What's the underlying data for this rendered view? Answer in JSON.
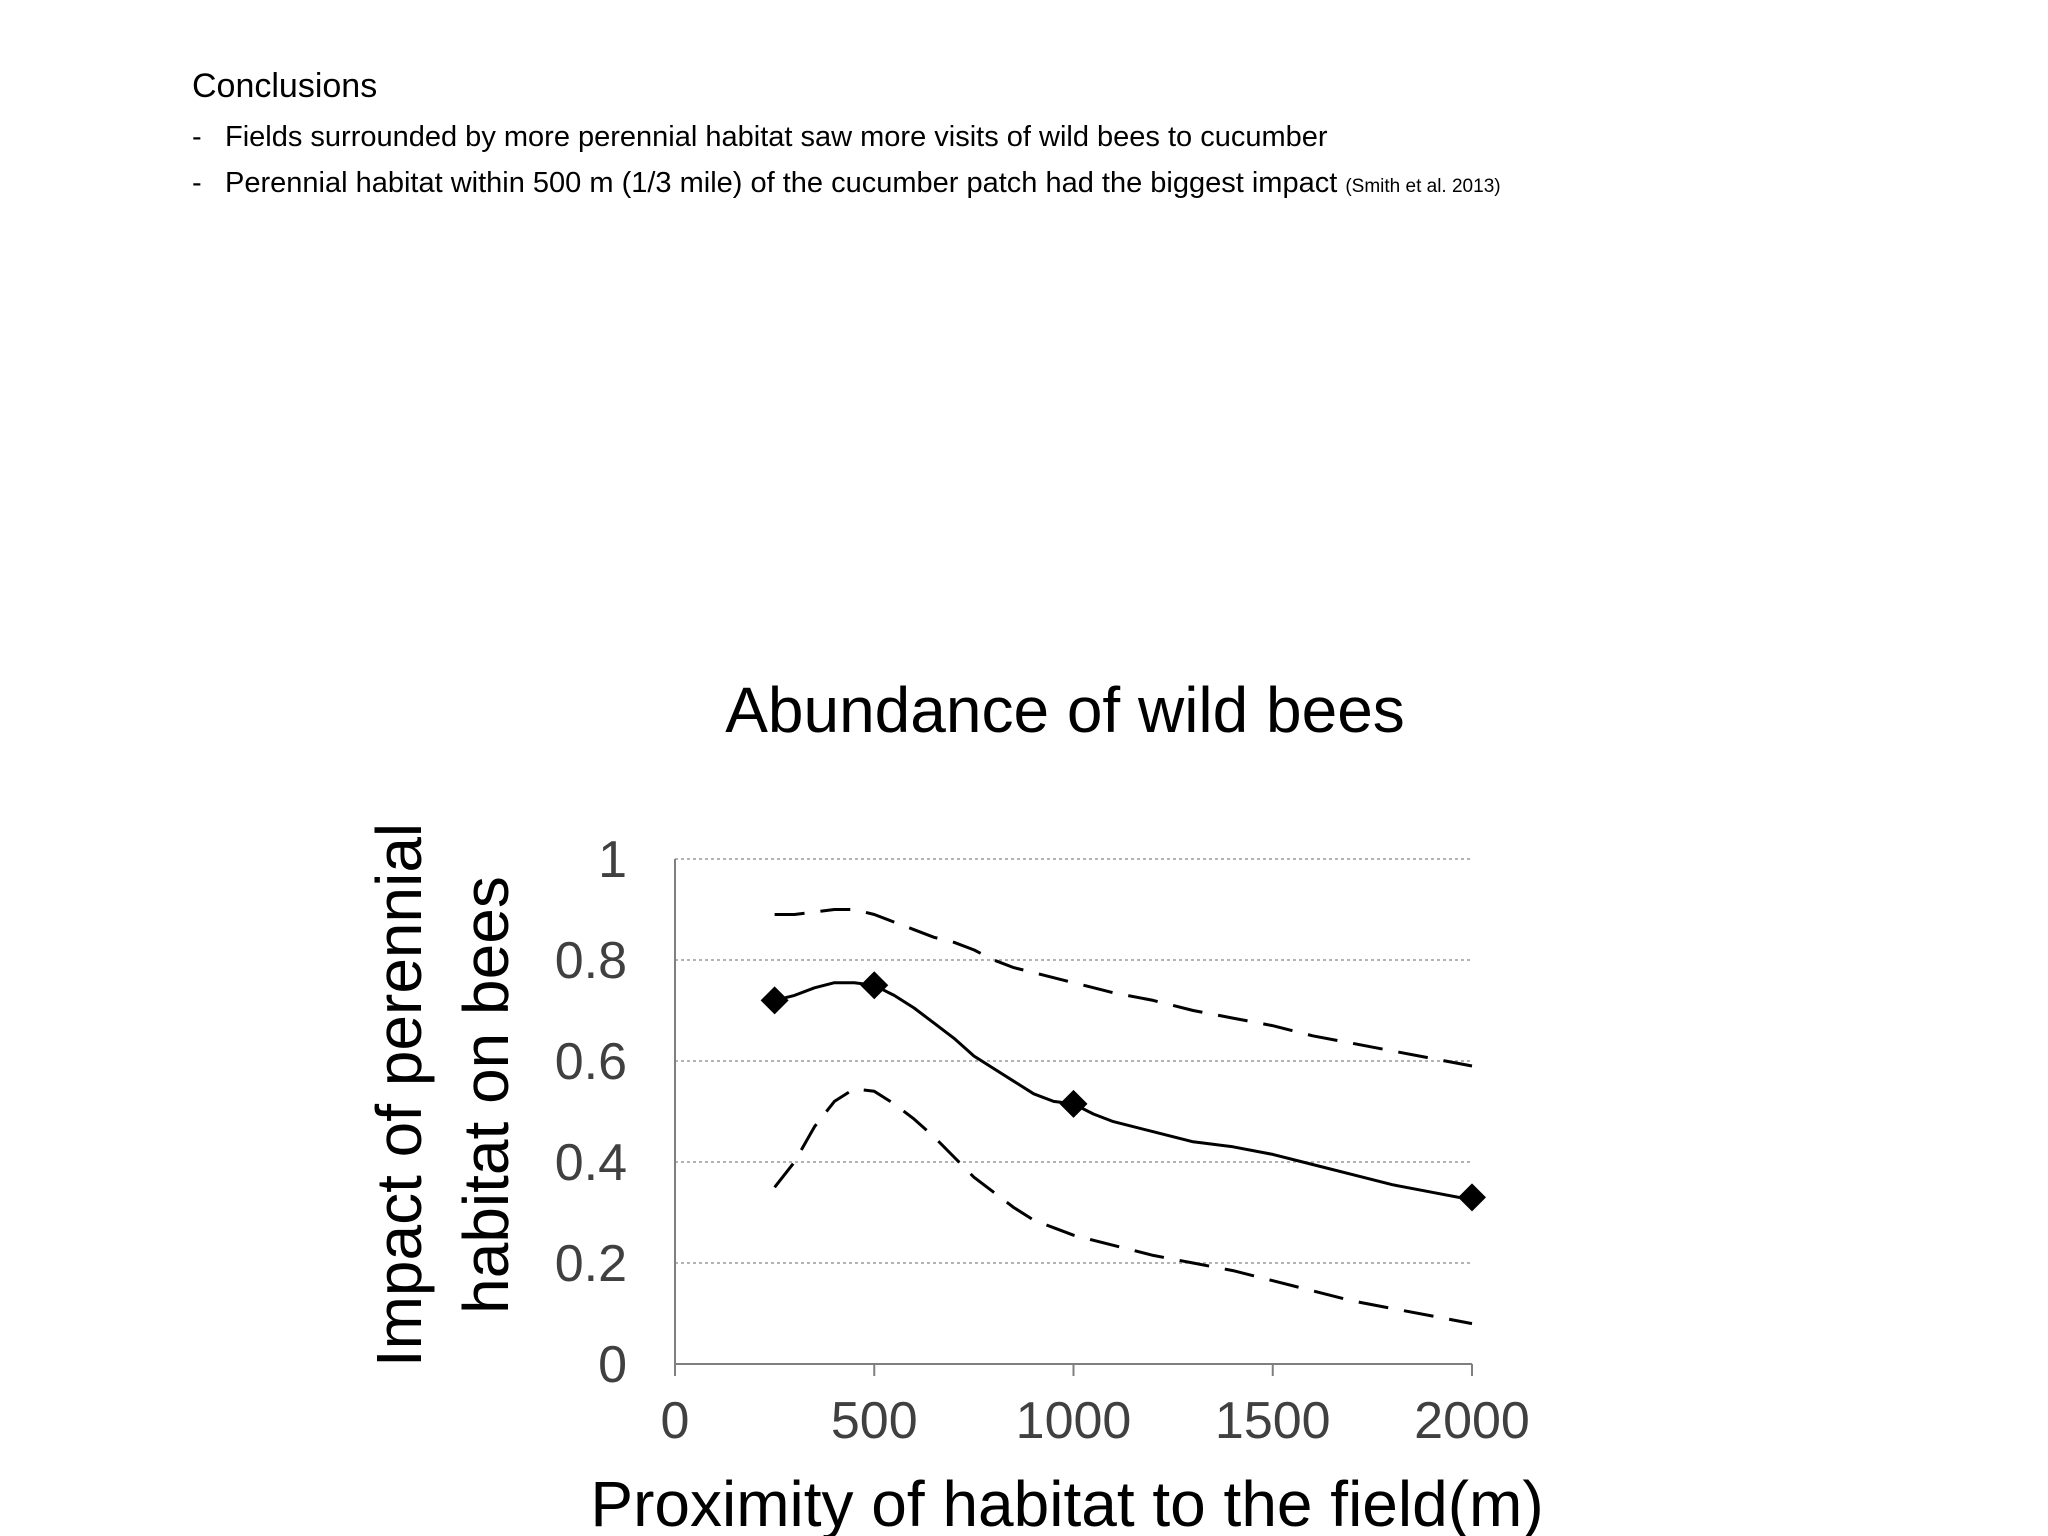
{
  "conclusions": {
    "heading": "Conclusions",
    "bullet_marker": "-",
    "items": [
      {
        "text": "Fields surrounded by more perennial habitat saw more visits of wild bees to cucumber",
        "citation": ""
      },
      {
        "text": "Perennial habitat within 500 m (1/3 mile) of the cucumber patch had the biggest impact",
        "citation": "(Smith et al. 2013)"
      }
    ]
  },
  "chart_data": {
    "type": "line",
    "title": "Abundance of wild bees",
    "xlabel": "Proximity of habitat to the field(m)",
    "ylabel_lines": [
      "Impact of perennial",
      "habitat on bees"
    ],
    "xlim": [
      0,
      2000
    ],
    "ylim": [
      0,
      1
    ],
    "x_ticks": [
      0,
      500,
      1000,
      1500,
      2000
    ],
    "y_ticks": [
      0,
      0.2,
      0.4,
      0.6,
      0.8,
      1
    ],
    "y_tick_labels": [
      "0",
      "0.2",
      "0.4",
      "0.6",
      "0.8",
      "1"
    ],
    "grid": "horizontal dotted",
    "legend": "none",
    "series": [
      {
        "style": "solid",
        "x": [
          250,
          300,
          350,
          400,
          450,
          500,
          550,
          600,
          650,
          700,
          750,
          800,
          850,
          900,
          950,
          1000,
          1050,
          1100,
          1200,
          1300,
          1350,
          1400,
          1500,
          1600,
          1700,
          1800,
          1900,
          2000
        ],
        "values": [
          0.72,
          0.73,
          0.745,
          0.755,
          0.755,
          0.75,
          0.73,
          0.705,
          0.675,
          0.645,
          0.61,
          0.585,
          0.56,
          0.535,
          0.52,
          0.515,
          0.495,
          0.48,
          0.46,
          0.44,
          0.435,
          0.43,
          0.415,
          0.395,
          0.375,
          0.355,
          0.34,
          0.325
        ]
      },
      {
        "style": "dashed",
        "x": [
          250,
          300,
          350,
          400,
          450,
          500,
          550,
          600,
          650,
          700,
          750,
          800,
          850,
          900,
          950,
          1000,
          1100,
          1200,
          1300,
          1400,
          1500,
          1600,
          1700,
          1800,
          1900,
          2000
        ],
        "values": [
          0.89,
          0.89,
          0.895,
          0.9,
          0.9,
          0.89,
          0.875,
          0.86,
          0.845,
          0.835,
          0.82,
          0.8,
          0.785,
          0.775,
          0.765,
          0.755,
          0.735,
          0.72,
          0.7,
          0.685,
          0.67,
          0.65,
          0.635,
          0.62,
          0.605,
          0.59
        ]
      },
      {
        "style": "dashed",
        "x": [
          250,
          300,
          350,
          400,
          450,
          500,
          550,
          600,
          650,
          700,
          750,
          800,
          850,
          900,
          950,
          1000,
          1100,
          1200,
          1300,
          1400,
          1500,
          1600,
          1700,
          1800,
          1900,
          2000
        ],
        "values": [
          0.35,
          0.4,
          0.47,
          0.52,
          0.545,
          0.54,
          0.515,
          0.485,
          0.45,
          0.41,
          0.37,
          0.34,
          0.31,
          0.285,
          0.27,
          0.255,
          0.235,
          0.215,
          0.2,
          0.185,
          0.165,
          0.145,
          0.125,
          0.11,
          0.095,
          0.08
        ]
      }
    ],
    "markers": {
      "shape": "diamond",
      "x": [
        250,
        500,
        1000,
        2000
      ],
      "values": [
        0.72,
        0.75,
        0.515,
        0.33
      ]
    },
    "colors": {
      "series": "#000000",
      "axis": "#7f7f7f",
      "grid": "#9a9a9a",
      "tick_text": "#404040",
      "title_text": "#000000"
    }
  }
}
